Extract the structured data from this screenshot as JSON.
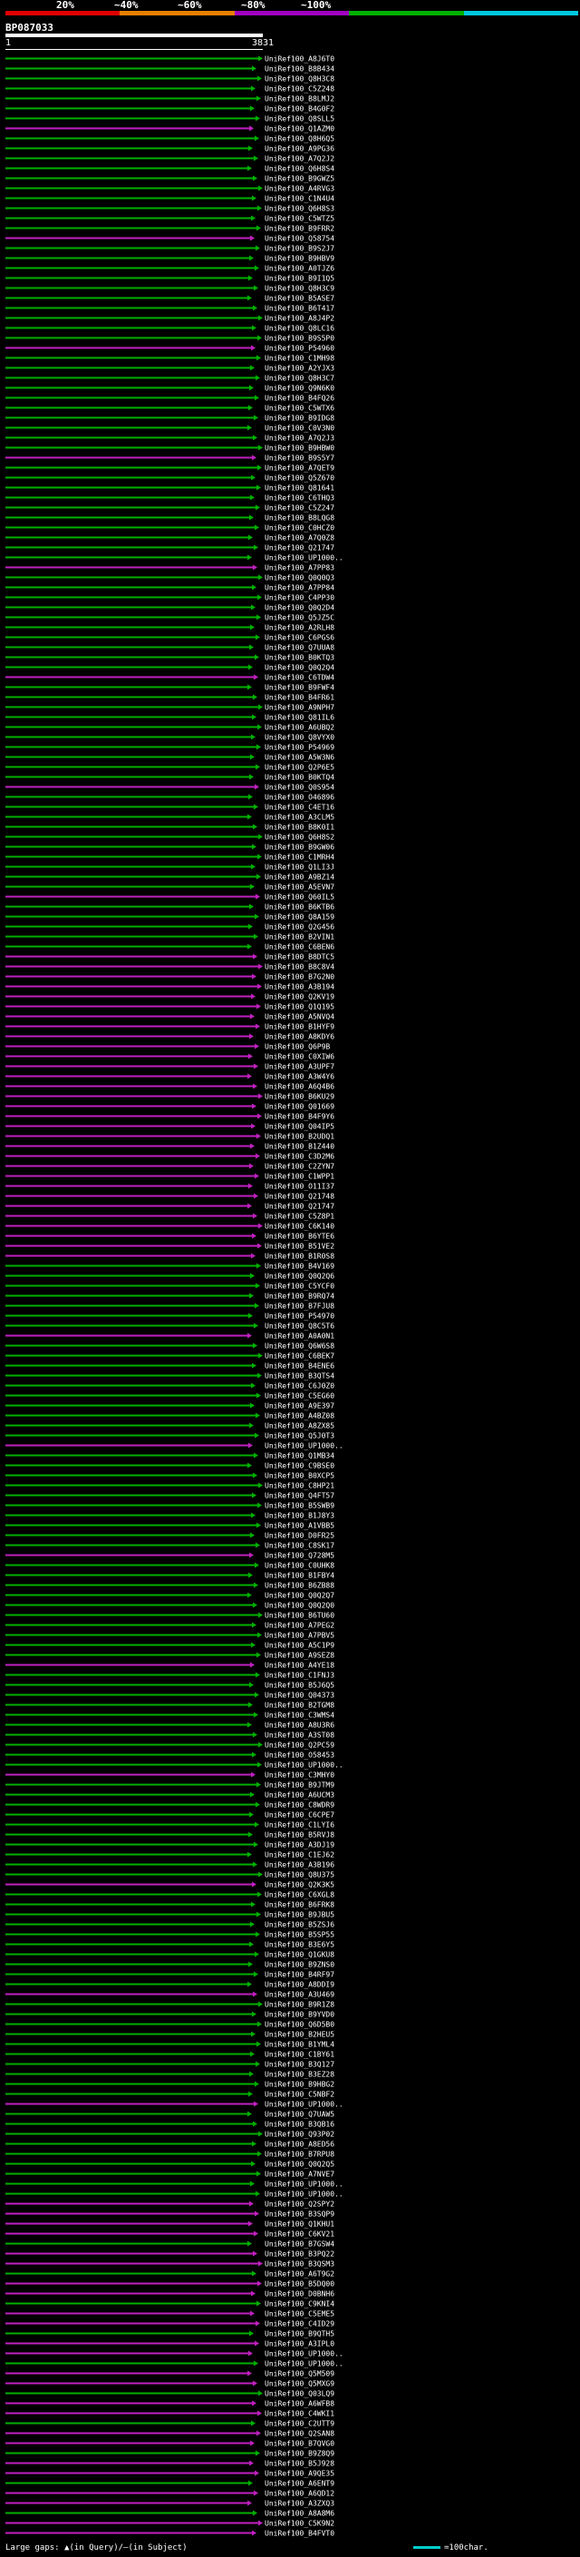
{
  "legend": {
    "labels": [
      "20%",
      "~40%",
      "~60%",
      "~80%",
      "~100%"
    ],
    "colors": [
      "#e00000",
      "#e88000",
      "#a000c0",
      "#00b000",
      "#00c8e0"
    ]
  },
  "query": {
    "id": "BP087033",
    "start": "1",
    "end": "3831"
  },
  "footer": {
    "gaps_label": "Large gaps: ",
    "gaps_query": "(in Query)",
    "gaps_sep": "/",
    "gaps_subject": "(in Subject)",
    "scale_label": "=100char."
  },
  "chart_data": {
    "type": "alignment-hits",
    "query_length": 3831,
    "hits": [
      "UniRef100_A8J6T0",
      "UniRef100_B8B434",
      "UniRef100_Q8H3C8",
      "UniRef100_C5Z248",
      "UniRef100_B8LMJ2",
      "UniRef100_B4G0F2",
      "UniRef100_Q8SLL5",
      "UniRef100_Q1AZM0",
      "UniRef100_Q8H6Q5",
      "UniRef100_A9PG36",
      "UniRef100_A7Q2J2",
      "UniRef100_Q6H8S4",
      "UniRef100_B9GWZ5",
      "UniRef100_A4RVG3",
      "UniRef100_C1N4U4",
      "UniRef100_Q6H8S3",
      "UniRef100_C5WTZ5",
      "UniRef100_B9FRR2",
      "UniRef100_Q58754",
      "UniRef100_B9S2J7",
      "UniRef100_B9HBV9",
      "UniRef100_A0TJZ6",
      "UniRef100_B9I1Q5",
      "UniRef100_Q8H3C9",
      "UniRef100_B5ASE7",
      "UniRef100_B6T417",
      "UniRef100_A8J4P2",
      "UniRef100_Q8LC16",
      "UniRef100_B9S5P0",
      "UniRef100_P54960",
      "UniRef100_C1MH98",
      "UniRef100_A2YJX3",
      "UniRef100_Q8H3C7",
      "UniRef100_Q9N6K0",
      "UniRef100_B4FQ26",
      "UniRef100_C5WTX6",
      "UniRef100_B9IDG8",
      "UniRef100_C0V3N0",
      "UniRef100_A7Q2J3",
      "UniRef100_B9HBW0",
      "UniRef100_B9S5Y7",
      "UniRef100_A7QET9",
      "UniRef100_Q5Z670",
      "UniRef100_Q81641",
      "UniRef100_C6THQ3",
      "UniRef100_C5Z247",
      "UniRef100_B8LQG8",
      "UniRef100_C0HCZ0",
      "UniRef100_A7Q0Z8",
      "UniRef100_Q21747",
      "UniRef100_UP1000..",
      "UniRef100_A7PP83",
      "UniRef100_Q0Q0Q3",
      "UniRef100_A7PP84",
      "UniRef100_C4PP30",
      "UniRef100_Q0Q2D4",
      "UniRef100_Q5JZ5C",
      "UniRef100_A2RLH8",
      "UniRef100_C6PGS6",
      "UniRef100_Q7UUA8",
      "UniRef100_B0KTQ3",
      "UniRef100_Q0Q2Q4",
      "UniRef100_C6TDW4",
      "UniRef100_B9FWF4",
      "UniRef100_B4FR61",
      "UniRef100_A9NPH7",
      "UniRef100_Q81IL6",
      "UniRef100_A6UBQ2",
      "UniRef100_Q8VYX0",
      "UniRef100_P54969",
      "UniRef100_A5W3N6",
      "UniRef100_Q2P6E5",
      "UniRef100_B0KTQ4",
      "UniRef100_Q0S954",
      "UniRef100_O46896",
      "UniRef100_C4ET16",
      "UniRef100_A3CLM5",
      "UniRef100_B8K0I1",
      "UniRef100_Q6H8S2",
      "UniRef100_B9GW06",
      "UniRef100_C1MRH4",
      "UniRef100_Q1LI3J",
      "UniRef100_A9BZ14",
      "UniRef100_A5EVN7",
      "UniRef100_Q60IL5",
      "UniRef100_B6KTB6",
      "UniRef100_Q8A159",
      "UniRef100_Q2G456",
      "UniRef100_B2VIN1",
      "UniRef100_C6BEN6",
      "UniRef100_B8DTC5",
      "UniRef100_B8C8V4",
      "UniRef100_B7G2N0",
      "UniRef100_A3B194",
      "UniRef100_Q2KV19",
      "UniRef100_Q1Q195",
      "UniRef100_A5NVQ4",
      "UniRef100_B1HYF9",
      "UniRef100_A8KDY6",
      "UniRef100_Q6P9B",
      "UniRef100_C0XIW6",
      "UniRef100_A3UPF7",
      "UniRef100_A3W4Y6",
      "UniRef100_A6Q4B6",
      "UniRef100_B6KU29",
      "UniRef100_Q01669",
      "UniRef100_B4F9Y6",
      "UniRef100_Q04IP5",
      "UniRef100_B2UDQ1",
      "UniRef100_B1Z440",
      "UniRef100_C3D2M6",
      "UniRef100_C2ZYN7",
      "UniRef100_C1WPP1",
      "UniRef100_O11I37",
      "UniRef100_Q21748",
      "UniRef100_Q21747",
      "UniRef100_C5Z8P1",
      "UniRef100_C6K140",
      "UniRef100_B6YTE6",
      "UniRef100_B51VE2",
      "UniRef100_B1R0S8",
      "UniRef100_B4V169",
      "UniRef100_Q0Q2Q6",
      "UniRef100_C5YCF0",
      "UniRef100_B9RQ74",
      "UniRef100_B7FJU8",
      "UniRef100_P54970",
      "UniRef100_Q8C5T6",
      "UniRef100_A0A0N1",
      "UniRef100_Q6W6S8",
      "UniRef100_C6BEK7",
      "UniRef100_B4ENE6",
      "UniRef100_B3QTS4",
      "UniRef100_C6J0Z0",
      "UniRef100_C5EG60",
      "UniRef100_A9E397",
      "UniRef100_A4BZ08",
      "UniRef100_A8ZX85",
      "UniRef100_Q5J0T3",
      "UniRef100_UP1000..",
      "UniRef100_Q1MB34",
      "UniRef100_C9BSE0",
      "UniRef100_B0XCP5",
      "UniRef100_C8HP21",
      "UniRef100_Q4FT57",
      "UniRef100_B5SWB9",
      "UniRef100_B1J8Y3",
      "UniRef100_A1VBB5",
      "UniRef100_D0FR25",
      "UniRef100_C8SK17",
      "UniRef100_Q728M5",
      "UniRef100_C0UHK8",
      "UniRef100_B1FBY4",
      "UniRef100_B6ZB88",
      "UniRef100_Q0Q2Q7",
      "UniRef100_Q0Q2Q0",
      "UniRef100_B6TU60",
      "UniRef100_A7PEG2",
      "UniRef100_A7PBV5",
      "UniRef100_A5C1P9",
      "UniRef100_A9SEZ8",
      "UniRef100_A4YE18",
      "UniRef100_C1FNJ3",
      "UniRef100_B5J6Q5",
      "UniRef100_Q04373",
      "UniRef100_B2TGM8",
      "UniRef100_C3WMS4",
      "UniRef100_A8U3R6",
      "UniRef100_A3ST08",
      "UniRef100_Q2PC59",
      "UniRef100_O58453",
      "UniRef100_UP1000..",
      "UniRef100_C3MHY0",
      "UniRef100_B9JTM9",
      "UniRef100_A6UCM3",
      "UniRef100_C8WDR9",
      "UniRef100_C6CPE7",
      "UniRef100_C1LYI6",
      "UniRef100_B5RVJ8",
      "UniRef100_A3DJ19",
      "UniRef100_C1EJ62",
      "UniRef100_A3B196",
      "UniRef100_Q8U375",
      "UniRef100_Q2K3K5",
      "UniRef100_C6XGL8",
      "UniRef100_B6FRK8",
      "UniRef100_B9JBU5",
      "UniRef100_B5ZSJ6",
      "UniRef100_B5SP55",
      "UniRef100_B3E6Y5",
      "UniRef100_Q1GKU8",
      "UniRef100_B9ZNS0",
      "UniRef100_B4RF97",
      "UniRef100_A8DDI9",
      "UniRef100_A3U469",
      "UniRef100_B9R1Z8",
      "UniRef100_B9YVD0",
      "UniRef100_Q6D5B0",
      "UniRef100_B2HEU5",
      "UniRef100_B1YML4",
      "UniRef100_C1BY61",
      "UniRef100_B3Q127",
      "UniRef100_B3EZ28",
      "UniRef100_B9HBG2",
      "UniRef100_C5NBF2",
      "UniRef100_UP1000..",
      "UniRef100_Q7UAW5",
      "UniRef100_B3QB16",
      "UniRef100_Q93P02",
      "UniRef100_A8ED56",
      "UniRef100_B7RPU8",
      "UniRef100_Q0Q2Q5",
      "UniRef100_A7NVE7",
      "UniRef100_UP1000..",
      "UniRef100_UP1000..",
      "UniRef100_Q2SPY2",
      "UniRef100_B3SQP9",
      "UniRef100_Q1KHU1",
      "UniRef100_C6KV21",
      "UniRef100_B7GSW4",
      "UniRef100_B3PQ22",
      "UniRef100_B3QSM3",
      "UniRef100_A6T9G2",
      "UniRef100_B5DQ00",
      "UniRef100_D0BNH6",
      "UniRef100_C9KNI4",
      "UniRef100_C5EME5",
      "UniRef100_C4ID29",
      "UniRef100_B9QTH5",
      "UniRef100_A3IPL0",
      "UniRef100_UP1000..",
      "UniRef100_UP1000..",
      "UniRef100_Q5M509",
      "UniRef100_Q5MXG9",
      "UniRef100_Q03LQ9",
      "UniRef100_A6WFB8",
      "UniRef100_C4WKI1",
      "UniRef100_C2UTT9",
      "UniRef100_Q2SAN8",
      "UniRef100_B7QVG0",
      "UniRef100_B9Z8Q9",
      "UniRef100_B5J928",
      "UniRef100_A9QE35",
      "UniRef100_A6ENT9",
      "UniRef100_A6QD12",
      "UniRef100_A3ZXQ3",
      "UniRef100_A8A8M6",
      "UniRef100_C5K9N2",
      "UniRef100_B4FVT0"
    ]
  }
}
